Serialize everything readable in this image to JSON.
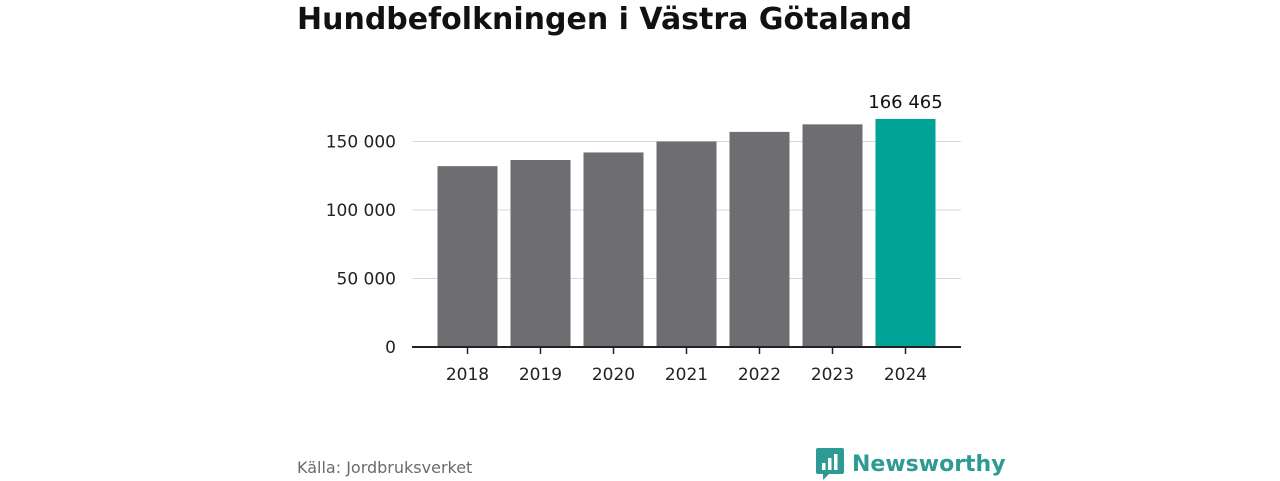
{
  "header": {
    "title": "Hundbefolkningen i Västra Götaland"
  },
  "footer": {
    "source": "Källa: Jordbruksverket",
    "brand": "Newsworthy"
  },
  "colors": {
    "bar": "#6d6d72",
    "highlight": "#00a396",
    "grid": "#d9d9d9",
    "axis": "#222222",
    "brand": "#2e9a94"
  },
  "chart_data": {
    "type": "bar",
    "title": "Hundbefolkningen i Västra Götaland",
    "xlabel": "",
    "ylabel": "",
    "categories": [
      "2018",
      "2019",
      "2020",
      "2021",
      "2022",
      "2023",
      "2024"
    ],
    "values": [
      132000,
      136500,
      142000,
      150000,
      157000,
      162500,
      166465
    ],
    "highlight_index": 6,
    "data_labels": [
      {
        "index": 6,
        "text": "166 465"
      }
    ],
    "ylim": [
      0,
      175000
    ],
    "yticks": [
      0,
      50000,
      100000,
      150000
    ],
    "ytick_labels": [
      "0",
      "50 000",
      "100 000",
      "150 000"
    ],
    "grid": true,
    "legend": "none"
  }
}
